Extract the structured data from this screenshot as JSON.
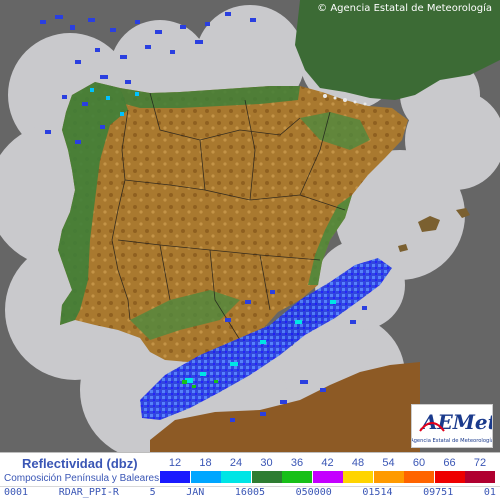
{
  "copyright": "© Agencia Estatal de Meteorología",
  "logo": {
    "text": "AEMet",
    "subtitle": "Agencia Estatal de Meteorología",
    "accent": "#e1001a",
    "blue": "#1a3a8c"
  },
  "legend": {
    "title": "Reflectividad (dbz)",
    "subtitle": "Composición Península y Baleares",
    "levels": [
      {
        "label": "12",
        "color": "#1a1aff"
      },
      {
        "label": "18",
        "color": "#00a6ff"
      },
      {
        "label": "24",
        "color": "#00e5e5"
      },
      {
        "label": "30",
        "color": "#2e7d32"
      },
      {
        "label": "36",
        "color": "#18c018"
      },
      {
        "label": "42",
        "color": "#c400ff"
      },
      {
        "label": "48",
        "color": "#ffd400"
      },
      {
        "label": "54",
        "color": "#ff9a00"
      },
      {
        "label": "60",
        "color": "#ff6400"
      },
      {
        "label": "66",
        "color": "#ee0000"
      },
      {
        "label": "72",
        "color": "#b00030"
      }
    ]
  },
  "footer": {
    "segments": [
      "0001",
      "RDAR_PPI-R",
      "5",
      "JAN",
      "16005",
      "050000",
      "01514",
      "09751",
      "01"
    ]
  }
}
